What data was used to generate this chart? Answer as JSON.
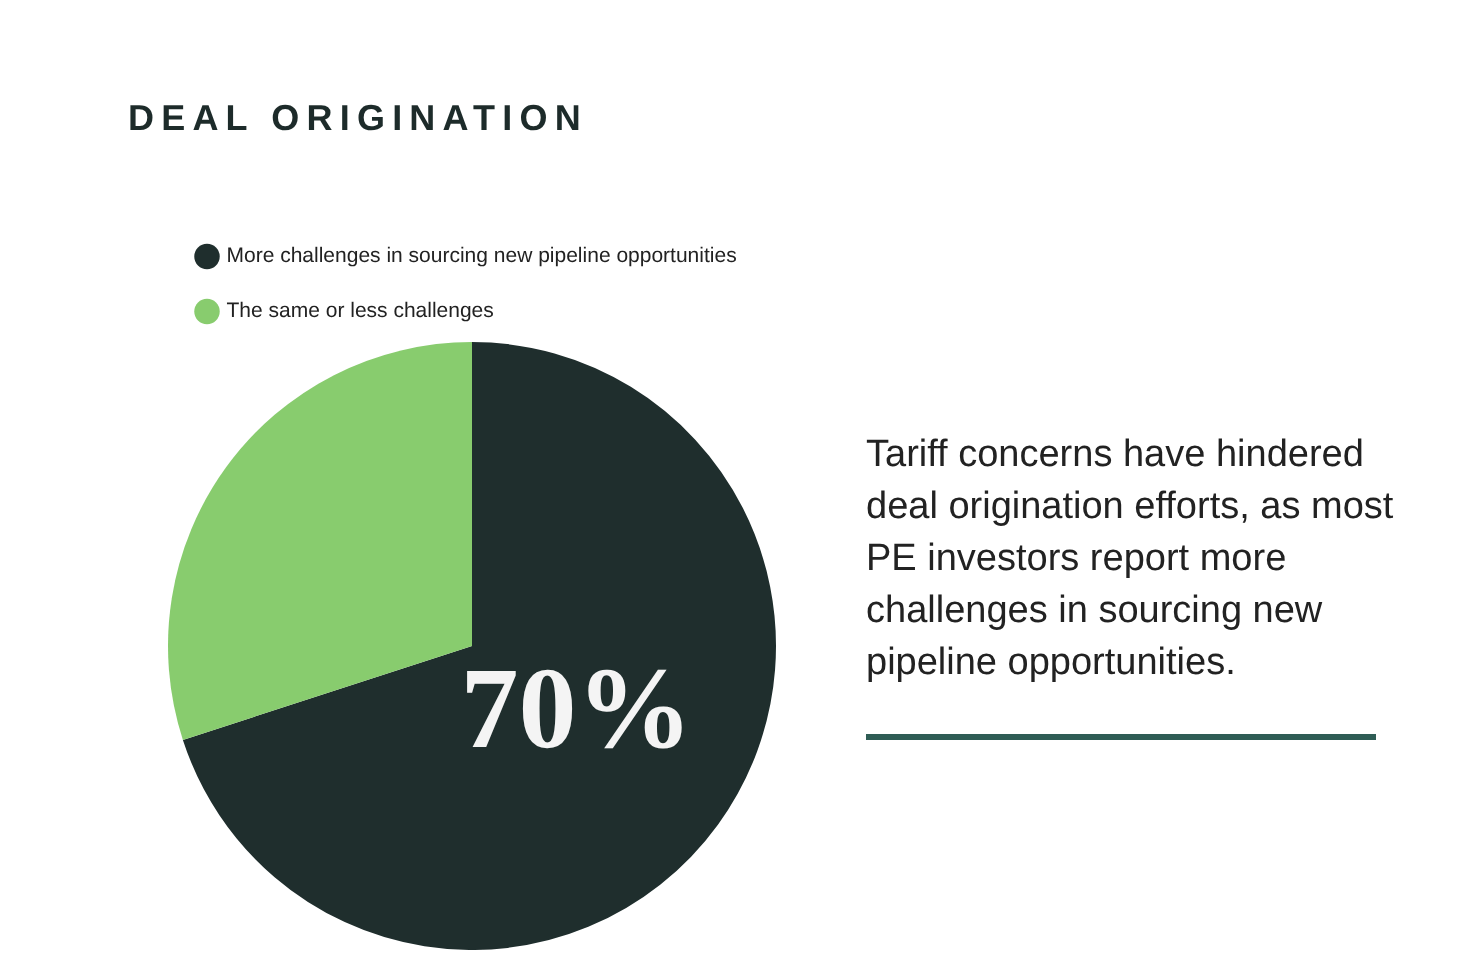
{
  "chart_data": {
    "type": "pie",
    "title": "DEAL ORIGINATION",
    "categories": [
      "More challenges in sourcing new pipeline opportunities",
      "The same or less challenges"
    ],
    "values": [
      70,
      30
    ],
    "colors": [
      "#1f2e2d",
      "#88cc6e"
    ],
    "value_labels": [
      "70%",
      null
    ],
    "legend": "top left",
    "annotations": [
      "Tariff concerns have hindered deal origination efforts, as most PE investors report more challenges in sourcing new pipeline opportunities."
    ]
  }
}
